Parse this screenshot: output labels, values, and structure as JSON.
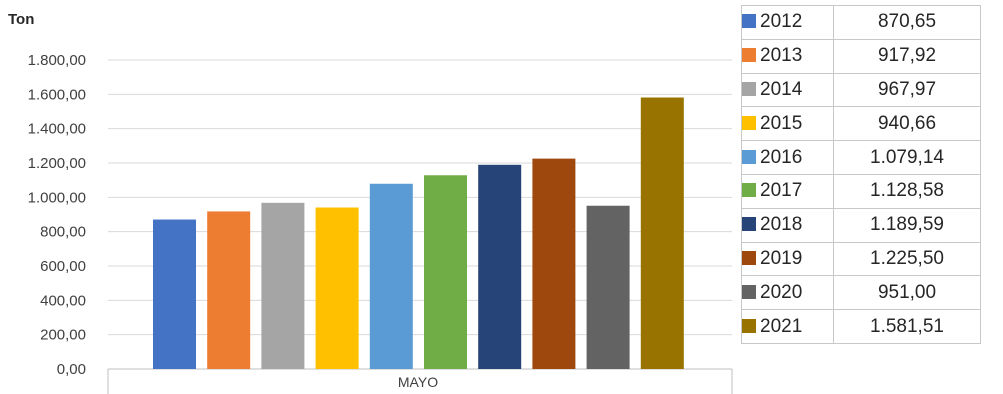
{
  "chart_data": {
    "type": "bar",
    "unit_label": "Ton",
    "categories": [
      "MAYO"
    ],
    "ylim": [
      0,
      1800
    ],
    "y_ticks": [
      "0,00",
      "200,00",
      "400,00",
      "600,00",
      "800,00",
      "1.000,00",
      "1.200,00",
      "1.400,00",
      "1.600,00",
      "1.800,00"
    ],
    "grid": true,
    "legend_position": "right (table)",
    "series": [
      {
        "name": "2012",
        "values": [
          870.65
        ],
        "label": "870,65",
        "color": "#4472C4"
      },
      {
        "name": "2013",
        "values": [
          917.92
        ],
        "label": "917,92",
        "color": "#ED7D31"
      },
      {
        "name": "2014",
        "values": [
          967.97
        ],
        "label": "967,97",
        "color": "#A5A5A5"
      },
      {
        "name": "2015",
        "values": [
          940.66
        ],
        "label": "940,66",
        "color": "#FFC000"
      },
      {
        "name": "2016",
        "values": [
          1079.14
        ],
        "label": "1.079,14",
        "color": "#5B9BD5"
      },
      {
        "name": "2017",
        "values": [
          1128.58
        ],
        "label": "1.128,58",
        "color": "#70AD47"
      },
      {
        "name": "2018",
        "values": [
          1189.59
        ],
        "label": "1.189,59",
        "color": "#264478"
      },
      {
        "name": "2019",
        "values": [
          1225.5
        ],
        "label": "1.225,50",
        "color": "#9E480E"
      },
      {
        "name": "2020",
        "values": [
          951.0
        ],
        "label": "951,00",
        "color": "#636363"
      },
      {
        "name": "2021",
        "values": [
          1581.51
        ],
        "label": "1.581,51",
        "color": "#997300"
      }
    ]
  }
}
